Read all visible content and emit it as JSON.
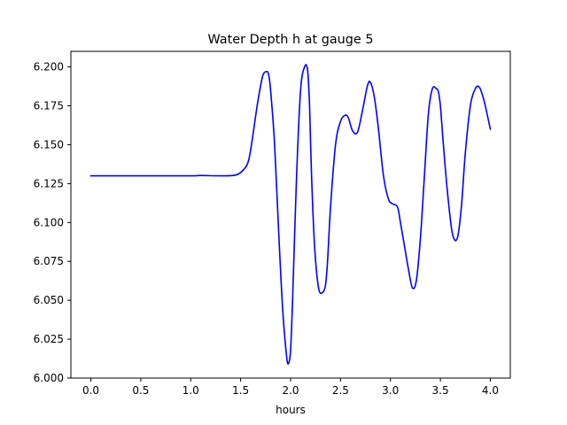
{
  "chart_data": {
    "type": "line",
    "title": "Water Depth h at gauge 5",
    "xlabel": "hours",
    "ylabel": "",
    "xlim": [
      -0.2,
      4.2
    ],
    "ylim": [
      6.0,
      6.21
    ],
    "grid": false,
    "xticks": [
      {
        "value": 0.0,
        "label": "0.0"
      },
      {
        "value": 0.5,
        "label": "0.5"
      },
      {
        "value": 1.0,
        "label": "1.0"
      },
      {
        "value": 1.5,
        "label": "1.5"
      },
      {
        "value": 2.0,
        "label": "2.0"
      },
      {
        "value": 2.5,
        "label": "2.5"
      },
      {
        "value": 3.0,
        "label": "3.0"
      },
      {
        "value": 3.5,
        "label": "3.5"
      },
      {
        "value": 4.0,
        "label": "4.0"
      }
    ],
    "yticks": [
      {
        "value": 6.0,
        "label": "6.000"
      },
      {
        "value": 6.025,
        "label": "6.025"
      },
      {
        "value": 6.05,
        "label": "6.050"
      },
      {
        "value": 6.075,
        "label": "6.075"
      },
      {
        "value": 6.1,
        "label": "6.100"
      },
      {
        "value": 6.125,
        "label": "6.125"
      },
      {
        "value": 6.15,
        "label": "6.150"
      },
      {
        "value": 6.175,
        "label": "6.175"
      },
      {
        "value": 6.2,
        "label": "6.200"
      }
    ],
    "series": [
      {
        "color": "#0000ff",
        "x": [
          0.0,
          0.5,
          1.0,
          1.1,
          1.3,
          1.45,
          1.53,
          1.58,
          1.62,
          1.67,
          1.72,
          1.76,
          1.78,
          1.8,
          1.84,
          1.88,
          1.92,
          1.96,
          1.98,
          2.0,
          2.02,
          2.06,
          2.1,
          2.14,
          2.17,
          2.19,
          2.21,
          2.24,
          2.28,
          2.32,
          2.35,
          2.37,
          2.4,
          2.45,
          2.5,
          2.55,
          2.58,
          2.62,
          2.67,
          2.72,
          2.77,
          2.8,
          2.84,
          2.88,
          2.93,
          2.98,
          3.02,
          3.07,
          3.1,
          3.14,
          3.18,
          3.22,
          3.26,
          3.3,
          3.34,
          3.38,
          3.42,
          3.46,
          3.48,
          3.5,
          3.53,
          3.57,
          3.62,
          3.67,
          3.71,
          3.75,
          3.8,
          3.85,
          3.89,
          3.93,
          3.96,
          4.0
        ],
        "y": [
          6.13,
          6.13,
          6.13,
          6.1302,
          6.13,
          6.1305,
          6.134,
          6.14,
          6.155,
          6.177,
          6.194,
          6.197,
          6.195,
          6.185,
          6.15,
          6.095,
          6.045,
          6.014,
          6.0095,
          6.018,
          6.05,
          6.13,
          6.185,
          6.2,
          6.198,
          6.175,
          6.13,
          6.085,
          6.058,
          6.055,
          6.06,
          6.075,
          6.11,
          6.15,
          6.165,
          6.169,
          6.167,
          6.159,
          6.158,
          6.172,
          6.188,
          6.19,
          6.18,
          6.16,
          6.13,
          6.115,
          6.112,
          6.11,
          6.1,
          6.085,
          6.07,
          6.058,
          6.063,
          6.09,
          6.13,
          6.17,
          6.186,
          6.186,
          6.184,
          6.175,
          6.15,
          6.12,
          6.093,
          6.09,
          6.11,
          6.145,
          6.175,
          6.186,
          6.187,
          6.18,
          6.172,
          6.16
        ]
      }
    ]
  }
}
